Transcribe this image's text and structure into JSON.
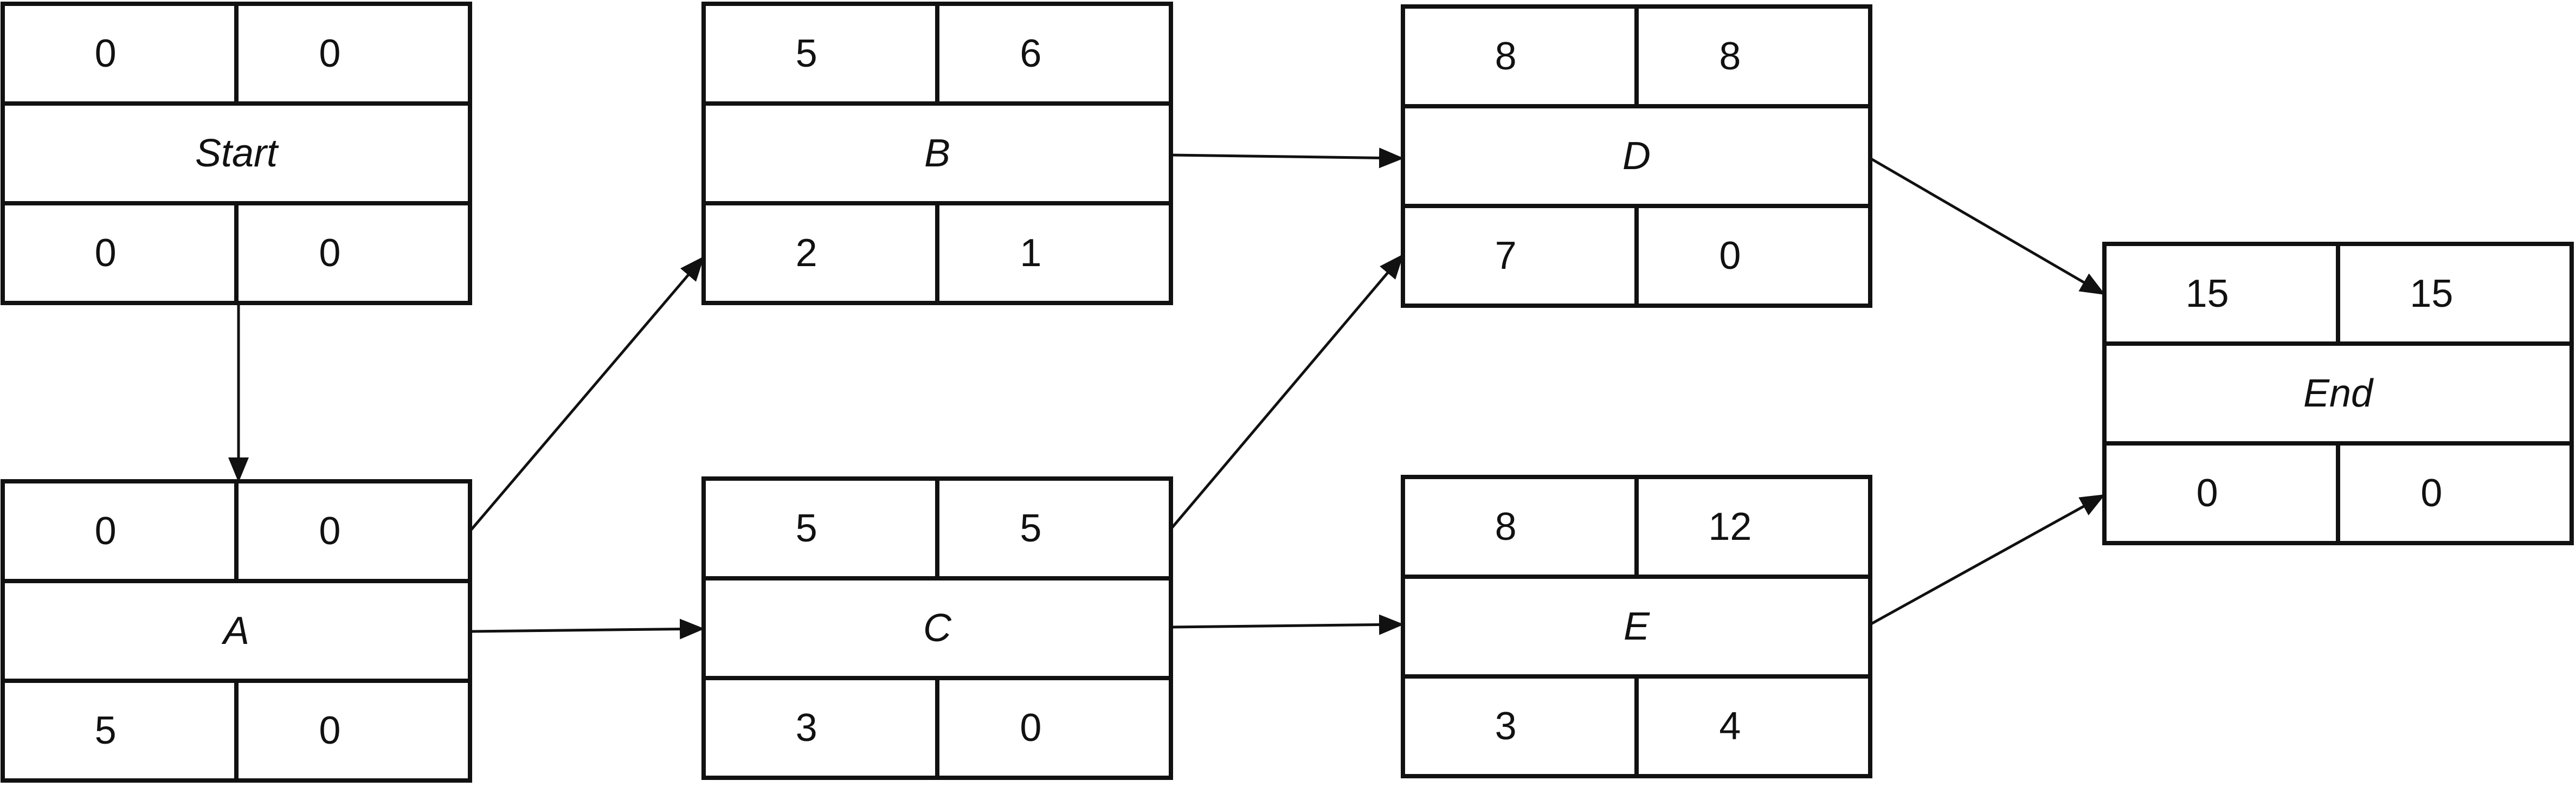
{
  "nodes": [
    {
      "id": "start",
      "name": "Start",
      "tl": "0",
      "tr": "0",
      "bl": "0",
      "br": "0"
    },
    {
      "id": "a",
      "name": "A",
      "tl": "0",
      "tr": "0",
      "bl": "5",
      "br": "0"
    },
    {
      "id": "b",
      "name": "B",
      "tl": "5",
      "tr": "6",
      "bl": "2",
      "br": "1"
    },
    {
      "id": "c",
      "name": "C",
      "tl": "5",
      "tr": "5",
      "bl": "3",
      "br": "0"
    },
    {
      "id": "d",
      "name": "D",
      "tl": "8",
      "tr": "8",
      "bl": "7",
      "br": "0"
    },
    {
      "id": "e",
      "name": "E",
      "tl": "8",
      "tr": "12",
      "bl": "3",
      "br": "4"
    },
    {
      "id": "end",
      "name": "End",
      "tl": "15",
      "tr": "15",
      "bl": "0",
      "br": "0"
    }
  ],
  "edges": [
    {
      "from": "start",
      "to": "a"
    },
    {
      "from": "a",
      "to": "b"
    },
    {
      "from": "a",
      "to": "c"
    },
    {
      "from": "b",
      "to": "d"
    },
    {
      "from": "c",
      "to": "d"
    },
    {
      "from": "c",
      "to": "e"
    },
    {
      "from": "d",
      "to": "end"
    },
    {
      "from": "e",
      "to": "end"
    }
  ],
  "colors": {
    "line": "#111111",
    "background": "#ffffff"
  }
}
